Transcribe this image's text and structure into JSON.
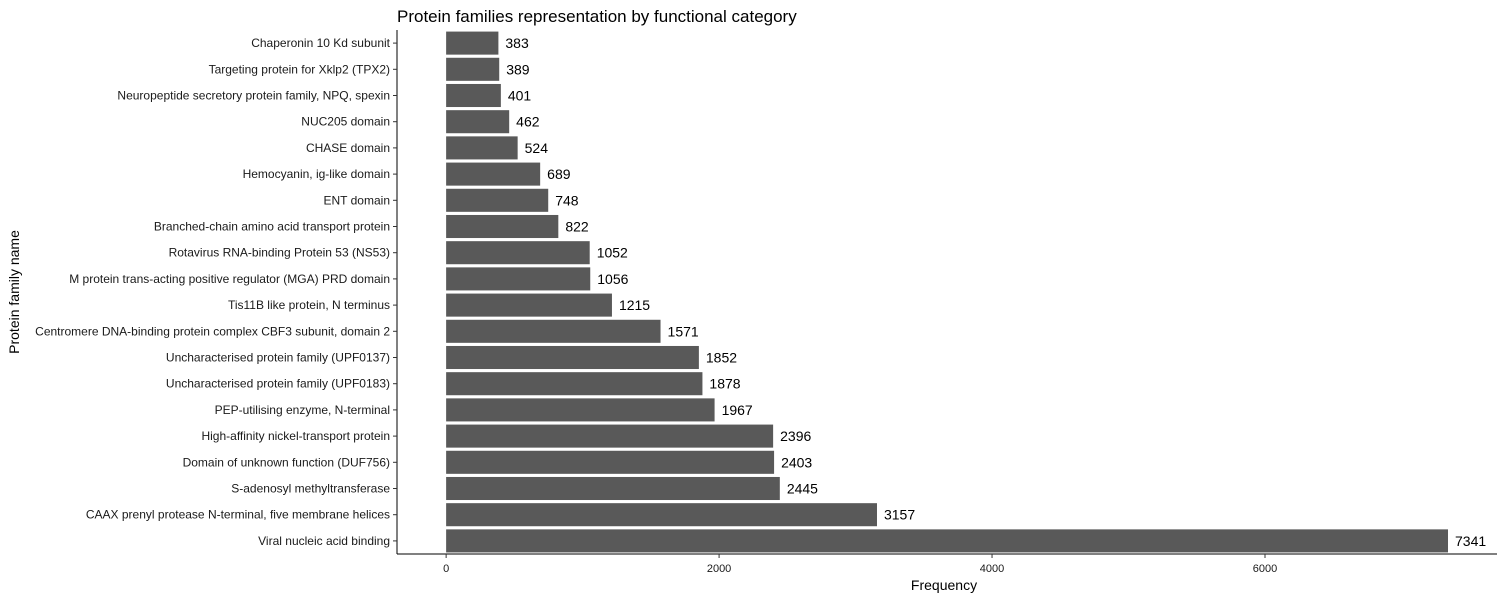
{
  "chart_data": {
    "type": "bar",
    "orientation": "horizontal",
    "title": "Protein families representation by functional category",
    "xlabel": "Frequency",
    "ylabel": "Protein family name",
    "xlim": [
      -360,
      7700
    ],
    "xticks": [
      0,
      2000,
      4000,
      6000
    ],
    "categories": [
      "Chaperonin 10 Kd subunit",
      "Targeting protein for Xklp2 (TPX2)",
      "Neuropeptide secretory protein family, NPQ, spexin",
      "NUC205 domain",
      "CHASE domain",
      "Hemocyanin, ig-like domain",
      "ENT domain",
      "Branched-chain amino acid transport protein",
      "Rotavirus RNA-binding Protein 53 (NS53)",
      "M protein trans-acting positive regulator (MGA) PRD domain",
      "Tis11B like protein, N terminus",
      "Centromere DNA-binding protein complex CBF3 subunit, domain 2",
      "Uncharacterised protein family (UPF0137)",
      "Uncharacterised protein family (UPF0183)",
      "PEP-utilising enzyme, N-terminal",
      "High-affinity nickel-transport protein",
      "Domain of unknown function (DUF756)",
      "S-adenosyl methyltransferase",
      "CAAX prenyl protease N-terminal, five membrane helices",
      "Viral nucleic acid binding"
    ],
    "values": [
      383,
      389,
      401,
      462,
      524,
      689,
      748,
      822,
      1052,
      1056,
      1215,
      1571,
      1852,
      1878,
      1967,
      2396,
      2403,
      2445,
      3157,
      7341
    ],
    "bar_color": "#595959",
    "grid": false
  }
}
